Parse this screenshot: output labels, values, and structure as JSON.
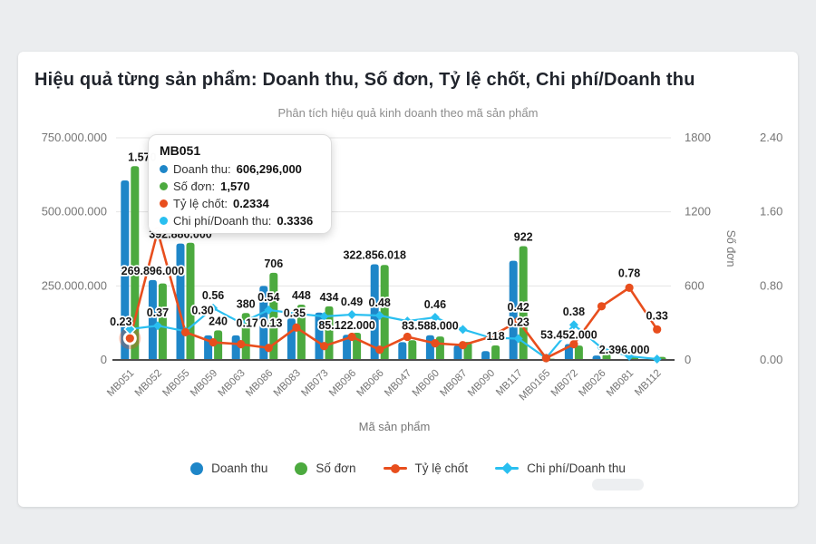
{
  "header": {
    "title": "Hiệu quả từng sản phẩm: Doanh thu, Số đơn, Tỷ lệ chốt, Chi phí/Doanh thu",
    "subtitle": "Phân tích hiệu quả kinh doanh theo mã sản phẩm"
  },
  "colors": {
    "blue": "#1e86c8",
    "green": "#4caa3f",
    "orange": "#e84e1d",
    "cyan": "#29bff0",
    "grid": "#e5e5e5",
    "baseline": "#4d4d4d",
    "axis_text": "#767676",
    "data_label": "#161616"
  },
  "axes": {
    "x": {
      "title": "Mã sản phẩm"
    },
    "y_left": {
      "ticks": [
        "750.000.000",
        "500.000.000",
        "250.000.000",
        "0"
      ]
    },
    "y_right_orders": {
      "title": "Số đơn",
      "ticks": [
        "1800",
        "1200",
        "600",
        "0"
      ]
    },
    "y_right_ratio": {
      "ticks": [
        "2.40",
        "1.60",
        "0.80",
        "0.00"
      ]
    }
  },
  "tooltip": {
    "title": "MB051",
    "rows": [
      {
        "label": "Doanh thu:",
        "value": "606,296,000",
        "color_key": "blue"
      },
      {
        "label": "Số đơn:",
        "value": "1,570",
        "color_key": "green"
      },
      {
        "label": "Tỷ lệ chốt:",
        "value": "0.2334",
        "color_key": "orange"
      },
      {
        "label": "Chi phí/Doanh thu:",
        "value": "0.3336",
        "color_key": "cyan"
      }
    ]
  },
  "legend": {
    "items": [
      {
        "label": "Doanh thu",
        "marker": "circle",
        "color_key": "blue"
      },
      {
        "label": "Số đơn",
        "marker": "circle",
        "color_key": "green"
      },
      {
        "label": "Tỷ lệ chốt",
        "marker": "line-dot",
        "color_key": "orange"
      },
      {
        "label": "Chi phí/Doanh thu",
        "marker": "line-diamond",
        "color_key": "cyan"
      }
    ]
  },
  "chart_data": {
    "type": "bar+line combo",
    "title": "Hiệu quả từng sản phẩm: Doanh thu, Số đơn, Tỷ lệ chốt, Chi phí/Doanh thu",
    "xlabel": "Mã sản phẩm",
    "grid": "horizontal only",
    "categories": [
      "MB051",
      "MB052",
      "MB055",
      "MB059",
      "MB063",
      "MB086",
      "MB083",
      "MB073",
      "MB096",
      "MB066",
      "MB047",
      "MB060",
      "MB087",
      "MB090",
      "MB117",
      "MB0165",
      "MB072",
      "MB026",
      "MB081",
      "MB112"
    ],
    "axis_ranges": {
      "revenue": [
        0,
        750000000
      ],
      "orders": [
        0,
        1800
      ],
      "ratio": [
        0,
        2.4
      ]
    },
    "series": [
      {
        "name": "Doanh thu",
        "type": "bar",
        "axis": "revenue",
        "color_key": "blue",
        "values": [
          606296000,
          269896000,
          392880000,
          83000000,
          83000000,
          250000000,
          140000000,
          160000000,
          85122000,
          322856018,
          60000000,
          83588000,
          49000000,
          30000000,
          335000000,
          2000000,
          53452000,
          15000000,
          2396000,
          5000000
        ],
        "labels": [
          {
            "i": 1,
            "t": "269.896.000"
          },
          {
            "i": 2,
            "t": "392.880.000"
          },
          {
            "i": 8,
            "t": "85.122.000"
          },
          {
            "i": 9,
            "t": "322.856.018"
          },
          {
            "i": 11,
            "t": "83.588.000"
          },
          {
            "i": 16,
            "t": "53.452.000"
          },
          {
            "i": 18,
            "t": "2.396.000"
          }
        ]
      },
      {
        "name": "Số đơn",
        "type": "bar",
        "axis": "orders",
        "color_key": "green",
        "values": [
          1570,
          620,
          950,
          240,
          380,
          706,
          448,
          434,
          220,
          770,
          160,
          190,
          146,
          118,
          922,
          10,
          117,
          50,
          30,
          25
        ],
        "labels": [
          {
            "i": 0,
            "t": "1.570",
            "dx": 8
          },
          {
            "i": 3,
            "t": "240"
          },
          {
            "i": 4,
            "t": "380"
          },
          {
            "i": 5,
            "t": "706"
          },
          {
            "i": 6,
            "t": "448"
          },
          {
            "i": 7,
            "t": "434"
          },
          {
            "i": 13,
            "t": "118"
          },
          {
            "i": 14,
            "t": "922"
          }
        ]
      },
      {
        "name": "Tỷ lệ chốt",
        "type": "line",
        "axis": "ratio",
        "color_key": "orange",
        "values": [
          0.2334,
          1.39,
          0.3,
          0.19,
          0.17,
          0.13,
          0.35,
          0.15,
          0.25,
          0.11,
          0.25,
          0.18,
          0.16,
          0.25,
          0.42,
          0.02,
          0.17,
          0.58,
          0.78,
          0.33
        ],
        "labels": [
          {
            "i": 0,
            "t": "0.23",
            "dx": -10,
            "dy": -14
          },
          {
            "i": 2,
            "t": "0.30",
            "dx": 19,
            "dy": -20
          },
          {
            "i": 4,
            "t": "0.17",
            "dx": 7,
            "dy": -19
          },
          {
            "i": 5,
            "t": "0.13",
            "dx": 3,
            "dy": -23
          },
          {
            "i": 6,
            "t": "0.35",
            "dx": -2,
            "dy": -12
          },
          {
            "i": 14,
            "t": "0.42",
            "dy": -11
          },
          {
            "i": 18,
            "t": "0.78",
            "dy": -12
          },
          {
            "i": 19,
            "t": "0.33",
            "dy": -11
          }
        ]
      },
      {
        "name": "Chi phí/Doanh thu",
        "type": "line",
        "axis": "ratio",
        "color_key": "cyan",
        "values": [
          0.3336,
          0.37,
          0.31,
          0.56,
          0.4,
          0.54,
          0.5,
          0.47,
          0.49,
          0.48,
          0.42,
          0.46,
          0.33,
          0.24,
          0.23,
          0.02,
          0.38,
          0.13,
          0.04,
          0.01
        ],
        "labels": [
          {
            "i": 1,
            "t": "0.37"
          },
          {
            "i": 3,
            "t": "0.56"
          },
          {
            "i": 5,
            "t": "0.54"
          },
          {
            "i": 8,
            "t": "0.49"
          },
          {
            "i": 9,
            "t": "0.48"
          },
          {
            "i": 11,
            "t": "0.46"
          },
          {
            "i": 14,
            "t": "0.23",
            "dy": -14
          },
          {
            "i": 16,
            "t": "0.38"
          }
        ]
      }
    ],
    "highlight": {
      "category": "MB051",
      "series": [
        "Tỷ lệ chốt",
        "Chi phí/Doanh thu"
      ]
    }
  }
}
